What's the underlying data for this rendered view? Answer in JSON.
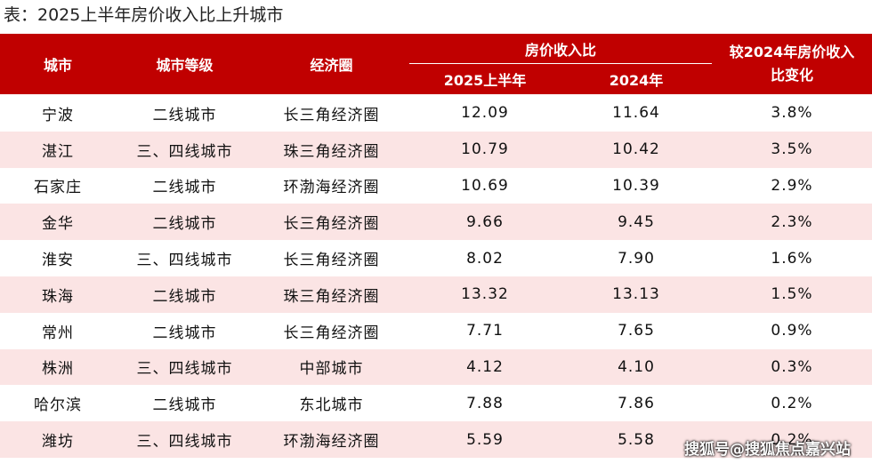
{
  "title": "表：2025上半年房价收入比上升城市",
  "header": {
    "city": "城市",
    "tier": "城市等级",
    "region": "经济圈",
    "ratio": "房价收入比",
    "h1": "2025上半年",
    "y2024": "2024年",
    "change": "较2024年房价收入比变化"
  },
  "rows": [
    [
      "宁波",
      "二线城市",
      "长三角经济圈",
      "12.09",
      "11.64",
      "3.8%"
    ],
    [
      "湛江",
      "三、四线城市",
      "珠三角经济圈",
      "10.79",
      "10.42",
      "3.5%"
    ],
    [
      "石家庄",
      "二线城市",
      "环渤海经济圈",
      "10.69",
      "10.39",
      "2.9%"
    ],
    [
      "金华",
      "二线城市",
      "长三角经济圈",
      "9.66",
      "9.45",
      "2.3%"
    ],
    [
      "淮安",
      "三、四线城市",
      "长三角经济圈",
      "8.02",
      "7.90",
      "1.6%"
    ],
    [
      "珠海",
      "二线城市",
      "珠三角经济圈",
      "13.32",
      "13.13",
      "1.5%"
    ],
    [
      "常州",
      "二线城市",
      "长三角经济圈",
      "7.71",
      "7.65",
      "0.9%"
    ],
    [
      "株洲",
      "三、四线城市",
      "中部城市",
      "4.12",
      "4.10",
      "0.3%"
    ],
    [
      "哈尔滨",
      "二线城市",
      "东北城市",
      "7.88",
      "7.86",
      "0.2%"
    ],
    [
      "潍坊",
      "三、四线城市",
      "环渤海经济圈",
      "5.59",
      "5.58",
      "0.2%"
    ]
  ],
  "watermark": "搜狐号@搜狐焦点嘉兴站"
}
